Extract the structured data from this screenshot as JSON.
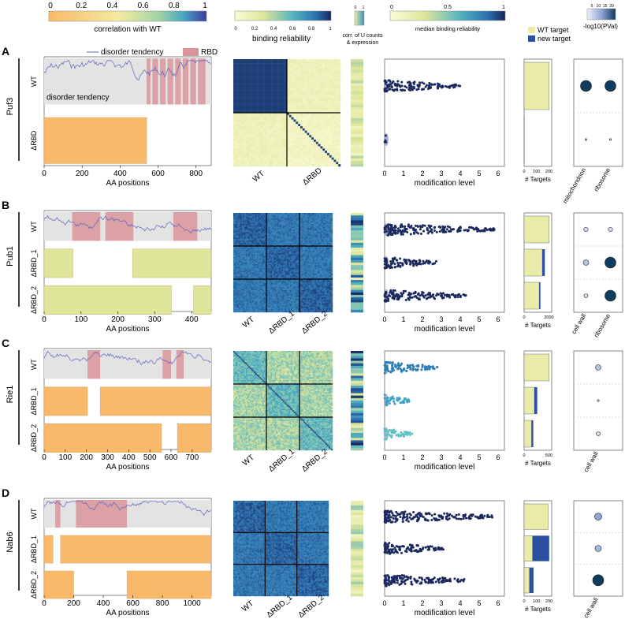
{
  "colors": {
    "orange": "#f9b96b",
    "lightgreen": "#dfe69a",
    "gray": "#e3e3e3",
    "rbd": "#d9959a",
    "disorder_line": "#5b63c4",
    "navy": "#1b2a5e",
    "wt_target": "#e9eba8",
    "new_target": "#2d4fa1"
  },
  "legends": {
    "corr_ticks": [
      "0",
      "0.2",
      "0.4",
      "0.6",
      "0.8",
      "1"
    ],
    "corr_label": "correlation with WT",
    "rel_ticks": [
      "0",
      "0.2",
      "0.4",
      "0.6",
      "0.8",
      "1"
    ],
    "rel_label": "binding reliability",
    "corr_u_ticks": [
      "0",
      "1"
    ],
    "corr_u_label": [
      "corr. of U counts",
      "& expression"
    ],
    "med_ticks": [
      "0",
      "0.5",
      "1"
    ],
    "med_label": "median binding reliability",
    "wt_target": "WT target",
    "new_target": "new target",
    "pval_ticks": [
      "5",
      "10",
      "15",
      "20"
    ],
    "pval_label": "-log10(PVal)",
    "disorder_key": "disorder tendency",
    "rbd_key": "RBD"
  },
  "axis_labels": {
    "aa_positions": "AA positions",
    "modification_level": "modification level",
    "targets": "# Targets"
  },
  "mod_ticks": [
    "0",
    "1",
    "2",
    "3",
    "4",
    "5",
    "6"
  ],
  "chart_data": [
    {
      "type": "bar",
      "letter": "A",
      "protein": "Puf3",
      "rows": [
        "WT",
        "ΔRBD"
      ],
      "aa_max": 880,
      "aa_ticks": [
        "0",
        "200",
        "400",
        "600",
        "800"
      ],
      "disorder_label": "disorder tendency",
      "rbd_segments": [
        [
          540,
          560
        ],
        [
          570,
          600
        ],
        [
          610,
          640
        ],
        [
          650,
          680
        ],
        [
          690,
          720
        ],
        [
          730,
          760
        ],
        [
          770,
          800
        ],
        [
          810,
          850
        ]
      ],
      "construct_segments": [
        [
          [
            0,
            540
          ]
        ]
      ],
      "construct_color": "orange",
      "correlation_with_wt": [
        0.1
      ],
      "matrix_labels": [
        "WT",
        "ΔRBD"
      ],
      "mod_level_max": [
        4.0,
        0.2
      ],
      "targets": [
        {
          "wt": 230,
          "new": 0
        },
        {
          "wt": 2,
          "new": 0
        }
      ],
      "targets_ticks": [
        "0",
        "100",
        "200"
      ],
      "go_terms": [
        "mitochondrion",
        "ribosome"
      ],
      "go_log10p": [
        [
          20,
          20
        ],
        [
          1,
          1
        ]
      ]
    },
    {
      "type": "bar",
      "letter": "B",
      "protein": "Pub1",
      "rows": [
        "WT",
        "ΔRBD_1",
        "ΔRBD_2"
      ],
      "aa_max": 453,
      "aa_ticks": [
        "0",
        "100",
        "200",
        "300",
        "400"
      ],
      "rbd_segments": [
        [
          76,
          152
        ],
        [
          166,
          242
        ],
        [
          350,
          415
        ]
      ],
      "construct_segments": [
        [
          [
            0,
            78
          ],
          [
            240,
            453
          ]
        ],
        [
          [
            0,
            345
          ],
          [
            405,
            453
          ]
        ]
      ],
      "construct_color": "lightgreen",
      "correlation_with_wt": [
        0.95,
        0.95
      ],
      "matrix_labels": [
        "WT",
        "ΔRBD_1",
        "ΔRBD_2"
      ],
      "mod_level_max": [
        5.8,
        2.8,
        4.3
      ],
      "targets": [
        {
          "wt": 2000,
          "new": 0
        },
        {
          "wt": 1450,
          "new": 200
        },
        {
          "wt": 1200,
          "new": 100
        }
      ],
      "targets_ticks": [
        "0",
        "2000"
      ],
      "go_terms": [
        "cell wall",
        "ribosome"
      ],
      "go_log10p": [
        [
          3,
          3
        ],
        [
          6,
          20
        ],
        [
          2,
          20
        ]
      ]
    },
    {
      "type": "bar",
      "letter": "C",
      "protein": "Rie1",
      "rows": [
        "WT",
        "ΔRBD_1",
        "ΔRBD_2"
      ],
      "aa_max": 790,
      "aa_ticks": [
        "0",
        "100",
        "200",
        "300",
        "400",
        "500",
        "600",
        "700"
      ],
      "rbd_segments": [
        [
          205,
          265
        ],
        [
          560,
          600
        ],
        [
          625,
          660
        ]
      ],
      "construct_segments": [
        [
          [
            0,
            205
          ],
          [
            265,
            790
          ]
        ],
        [
          [
            0,
            555
          ],
          [
            630,
            790
          ]
        ]
      ],
      "construct_color": "orange",
      "correlation_with_wt": [
        0.45,
        0.45
      ],
      "matrix_labels": [
        "WT",
        "ΔRBD_1",
        "ΔRBD_2"
      ],
      "mod_level_max": [
        2.8,
        1.3,
        1.5
      ],
      "targets": [
        {
          "wt": 440,
          "new": 0
        },
        {
          "wt": 180,
          "new": 50
        },
        {
          "wt": 130,
          "new": 30
        }
      ],
      "targets_ticks": [
        "0",
        "500"
      ],
      "go_terms": [
        "cell wall"
      ],
      "go_log10p": [
        [
          6
        ],
        [
          1
        ],
        [
          2
        ]
      ]
    },
    {
      "type": "bar",
      "letter": "D",
      "protein": "Nab6",
      "rows": [
        "WT",
        "ΔRBD_1",
        "ΔRBD_2"
      ],
      "aa_max": 1130,
      "aa_ticks": [
        "0",
        "200",
        "400",
        "600",
        "800",
        "1000"
      ],
      "rbd_segments": [
        [
          75,
          110
        ],
        [
          215,
          560
        ]
      ],
      "construct_segments": [
        [
          [
            0,
            60
          ],
          [
            110,
            1130
          ]
        ],
        [
          [
            0,
            200
          ],
          [
            560,
            1130
          ]
        ]
      ],
      "construct_color": "orange",
      "correlation_with_wt": [
        0.2,
        0.95
      ],
      "matrix_labels": [
        "WT",
        "ΔRBD_1",
        "ΔRBD_2"
      ],
      "mod_level_max": [
        5.8,
        3.2,
        4.3
      ],
      "targets": [
        {
          "wt": 230,
          "new": 0
        },
        {
          "wt": 80,
          "new": 160
        },
        {
          "wt": 50,
          "new": 40
        }
      ],
      "targets_ticks": [
        "0",
        "100",
        "200"
      ],
      "go_terms": [
        "cell wall"
      ],
      "go_log10p": [
        [
          10
        ],
        [
          8
        ],
        [
          20
        ]
      ]
    }
  ]
}
